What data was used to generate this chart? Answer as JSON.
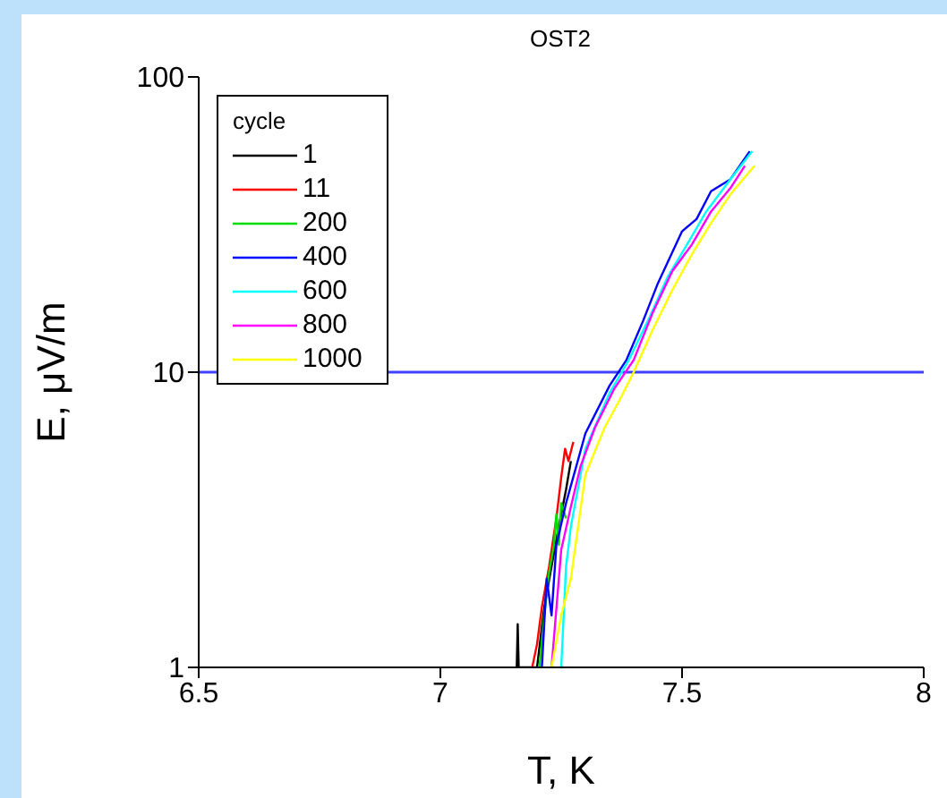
{
  "chart_data": {
    "type": "line",
    "title": "OST2",
    "xlabel": "T, K",
    "ylabel": "E, μV/m",
    "legend_title": "cycle",
    "xlim": [
      6.5,
      8
    ],
    "xticks": [
      6.5,
      7,
      7.5,
      8
    ],
    "ylim": [
      1,
      100
    ],
    "yticks": [
      1,
      10,
      100
    ],
    "log": "y",
    "legend": "top left",
    "marker": "none",
    "line_style": "solid",
    "series": [
      {
        "name": "1",
        "color": "#000000",
        "x": [
          7.158,
          7.16,
          7.162,
          7.2,
          7.215,
          7.23,
          7.245,
          7.26,
          7.27
        ],
        "values": [
          1,
          1.4,
          1,
          1,
          1.6,
          2.2,
          3,
          4,
          5
        ]
      },
      {
        "name": "11",
        "color": "#ff0000",
        "x": [
          7.19,
          7.2,
          7.21,
          7.225,
          7.24,
          7.25,
          7.258,
          7.265,
          7.275
        ],
        "values": [
          1,
          1.2,
          1.6,
          2.2,
          3.2,
          4.4,
          5.5,
          5,
          5.8
        ]
      },
      {
        "name": "200",
        "color": "#00dd00",
        "x": [
          7.205,
          7.215,
          7.225,
          7.235,
          7.24,
          7.245,
          7.25,
          7.26
        ],
        "values": [
          1,
          1.5,
          2.1,
          2.6,
          3.3,
          2.6,
          3.6,
          3.2
        ]
      },
      {
        "name": "400",
        "color": "#0000ff",
        "x": [
          7.21,
          7.22,
          7.23,
          7.24,
          7.26,
          7.3,
          7.35,
          7.385,
          7.42,
          7.45,
          7.5,
          7.53,
          7.56,
          7.6,
          7.64
        ],
        "values": [
          1,
          2,
          1.5,
          2.6,
          3.6,
          6.2,
          9,
          11,
          15,
          20,
          30,
          33,
          41,
          45,
          56
        ]
      },
      {
        "name": "600",
        "color": "#00ffff",
        "x": [
          7.25,
          7.26,
          7.27,
          7.3,
          7.35,
          7.39,
          7.43,
          7.47,
          7.51,
          7.55,
          7.6,
          7.645
        ],
        "values": [
          1,
          2.2,
          3,
          5.5,
          8.5,
          11,
          15,
          21,
          27,
          35,
          45,
          56
        ]
      },
      {
        "name": "800",
        "color": "#ff00ff",
        "x": [
          7.23,
          7.25,
          7.27,
          7.29,
          7.32,
          7.36,
          7.4,
          7.44,
          7.48,
          7.52,
          7.56,
          7.6,
          7.63
        ],
        "values": [
          1,
          2.5,
          3.5,
          4.8,
          6.5,
          8.8,
          11,
          16,
          22,
          27,
          35,
          42,
          50
        ]
      },
      {
        "name": "1000",
        "color": "#ffff00",
        "x": [
          7.23,
          7.25,
          7.27,
          7.3,
          7.34,
          7.37,
          7.4,
          7.44,
          7.48,
          7.52,
          7.56,
          7.6,
          7.65
        ],
        "values": [
          1,
          1.5,
          2,
          4.5,
          6.5,
          8,
          10,
          14,
          19,
          25,
          32,
          40,
          50
        ]
      }
    ],
    "ref_lines": [
      {
        "axis": "y",
        "value": 10,
        "color": "#4040ff"
      }
    ]
  }
}
